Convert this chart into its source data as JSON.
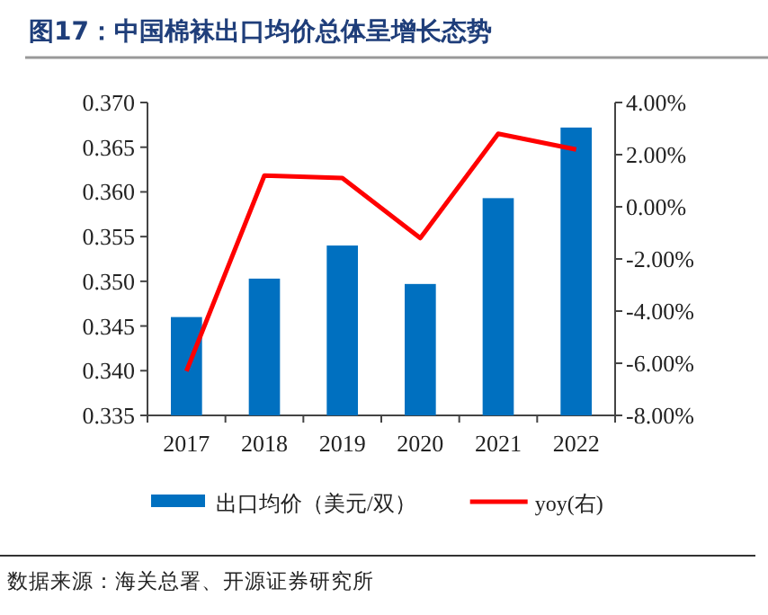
{
  "chart_data": {
    "type": "bar",
    "title": "图17：中国棉袜出口均价总体呈增长态势",
    "categories": [
      "2017",
      "2018",
      "2019",
      "2020",
      "2021",
      "2022"
    ],
    "series": [
      {
        "name": "出口均价（美元/双）",
        "color": "#0070c0",
        "values": [
          0.346,
          0.3503,
          0.354,
          0.3497,
          0.3593,
          0.3672
        ]
      },
      {
        "name": "yoy(右)",
        "type": "line",
        "axis": "y2",
        "color": "#ff0000",
        "values": [
          -6.3,
          1.2,
          1.1,
          -1.2,
          2.8,
          2.2
        ]
      }
    ],
    "ylim": [
      0.335,
      0.37
    ],
    "yticks": [
      {
        "value": 0.335,
        "label": "0.335"
      },
      {
        "value": 0.34,
        "label": "0.340"
      },
      {
        "value": 0.345,
        "label": "0.345"
      },
      {
        "value": 0.35,
        "label": "0.350"
      },
      {
        "value": 0.355,
        "label": "0.355"
      },
      {
        "value": 0.36,
        "label": "0.360"
      },
      {
        "value": 0.365,
        "label": "0.365"
      },
      {
        "value": 0.37,
        "label": "0.370"
      }
    ],
    "y2lim": [
      -8,
      4
    ],
    "y2ticks": [
      {
        "value": -8,
        "label": "-8.00%"
      },
      {
        "value": -6,
        "label": "-6.00%"
      },
      {
        "value": -4,
        "label": "-4.00%"
      },
      {
        "value": -2,
        "label": "-2.00%"
      },
      {
        "value": 0,
        "label": "0.00%"
      },
      {
        "value": 2,
        "label": "2.00%"
      },
      {
        "value": 4,
        "label": "4.00%"
      }
    ],
    "grid": false,
    "legend": "bottom",
    "marker": "none",
    "line_style": "solid",
    "annotations": [
      "数据来源：海关总署、开源证券研究所"
    ]
  }
}
